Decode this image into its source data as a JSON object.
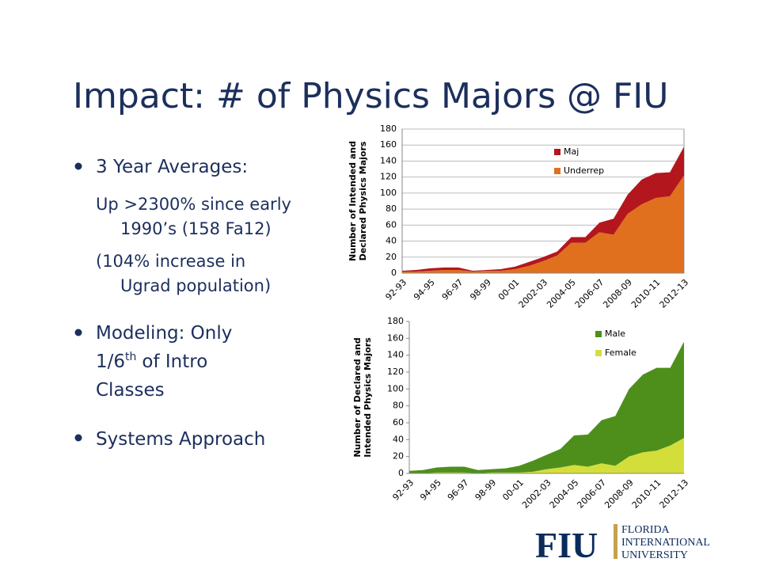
{
  "title": "Impact: # of Physics Majors @ FIU",
  "bullets": [
    {
      "text": "3 Year Averages:",
      "sub": [
        [
          "Up >2300% since early",
          "1990’s (158 Fa12)"
        ],
        [
          "(104% increase in",
          "Ugrad population)"
        ]
      ]
    },
    {
      "text": [
        "Modeling: Only",
        "1/6",
        "th",
        "of Intro",
        "Classes"
      ]
    },
    {
      "text": "Systems Approach"
    }
  ],
  "logo": {
    "mark": "FIU",
    "lines": [
      "FLORIDA",
      "INTERNATIONAL",
      "UNIVERSITY"
    ]
  },
  "chart_data": [
    {
      "type": "area",
      "stacked": true,
      "grid": true,
      "ylabel": [
        "Number of Intended and",
        "Declared Physics Majors"
      ],
      "categories": [
        "92-93",
        null,
        "94-95",
        null,
        "96-97",
        null,
        "98-99",
        null,
        "00-01",
        null,
        "2002-03",
        null,
        "2004-05",
        null,
        "2006-07",
        null,
        "2008-09",
        null,
        "2010-11",
        null,
        "2012-13"
      ],
      "series": [
        {
          "name": "Maj",
          "color": "#b3171d",
          "values": [
            1,
            2,
            3,
            3,
            3,
            1,
            1,
            2,
            3,
            5,
            5,
            5,
            7,
            7,
            12,
            20,
            24,
            31,
            31,
            30,
            36
          ]
        },
        {
          "name": "Underrep",
          "color": "#e0701e",
          "values": [
            2,
            2,
            3,
            4,
            4,
            2,
            3,
            3,
            5,
            9,
            15,
            22,
            38,
            38,
            51,
            48,
            74,
            86,
            94,
            96,
            122
          ]
        }
      ],
      "ylim": [
        0,
        180
      ],
      "yticks": [
        0,
        20,
        40,
        60,
        80,
        100,
        120,
        140,
        160,
        180
      ]
    },
    {
      "type": "area",
      "stacked": true,
      "grid": false,
      "ylabel": [
        "Number of Declared and",
        "Intended Physics Majors"
      ],
      "categories": [
        "92-93",
        null,
        "94-95",
        null,
        "96-97",
        null,
        "98-99",
        null,
        "00-01",
        null,
        "2002-03",
        null,
        "2004-05",
        null,
        "2006-07",
        null,
        "2008-09",
        null,
        "2010-11",
        null,
        "2012-13"
      ],
      "series": [
        {
          "name": "Male",
          "color": "#4e8f1c",
          "values": [
            3,
            4,
            6,
            7,
            7,
            4,
            4,
            5,
            8,
            13,
            17,
            22,
            35,
            38,
            51,
            59,
            80,
            92,
            98,
            92,
            114
          ]
        },
        {
          "name": "Female",
          "color": "#d4de3a",
          "values": [
            0,
            0,
            1,
            1,
            1,
            0,
            1,
            1,
            1,
            2,
            5,
            7,
            10,
            8,
            12,
            9,
            20,
            25,
            27,
            33,
            42
          ]
        }
      ],
      "ylim": [
        0,
        180
      ],
      "yticks": [
        0,
        20,
        40,
        60,
        80,
        100,
        120,
        140,
        160,
        180
      ]
    }
  ]
}
